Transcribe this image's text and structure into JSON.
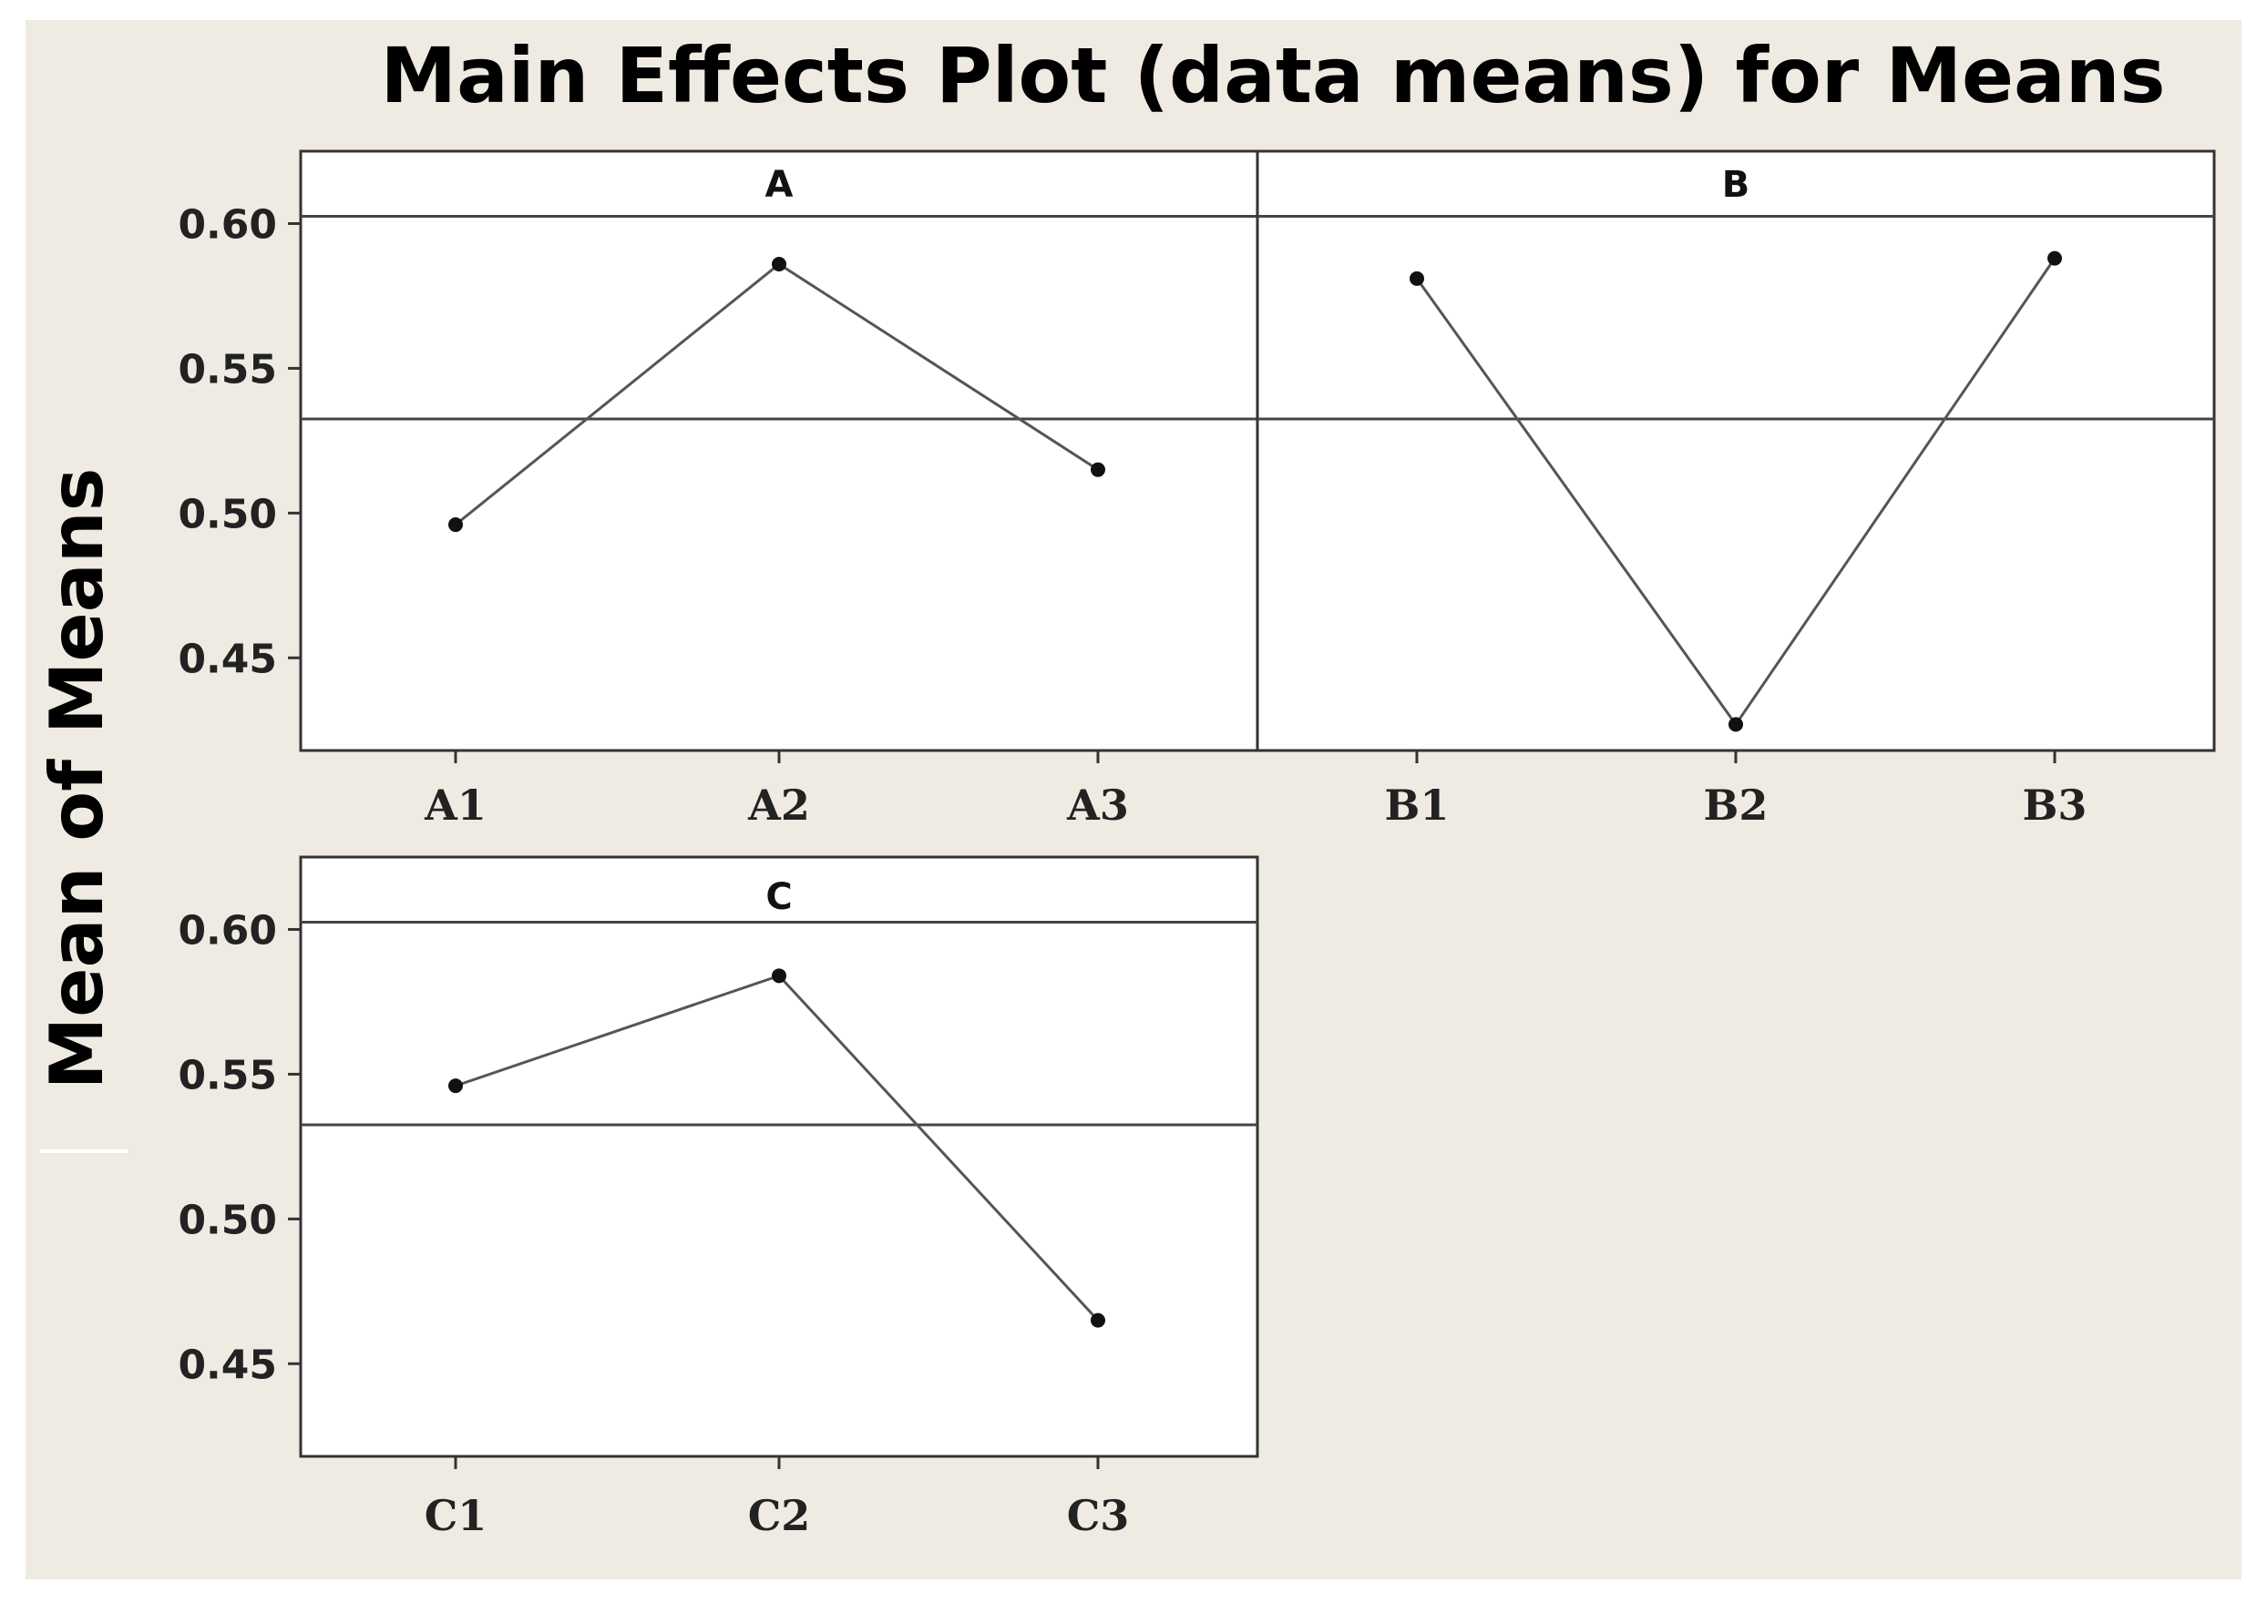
{
  "chart_data": {
    "type": "line",
    "title": "Main Effects Plot (data means) for Means",
    "ylabel": "Mean of Means",
    "ylim": [
      0.418,
      0.625
    ],
    "yticks": [
      "0.45",
      "0.50",
      "0.55",
      "0.60"
    ],
    "reference_lines": [
      0.5325,
      0.6025
    ],
    "grid": false,
    "colors": {
      "background": "#efebe2",
      "panel": "#ffffff",
      "line": "#555555",
      "marker": "#111111"
    },
    "panels": [
      {
        "name": "A",
        "categories": [
          "A1",
          "A2",
          "A3"
        ],
        "values": [
          0.496,
          0.586,
          0.515
        ]
      },
      {
        "name": "B",
        "categories": [
          "B1",
          "B2",
          "B3"
        ],
        "values": [
          0.581,
          0.427,
          0.588
        ]
      },
      {
        "name": "C",
        "categories": [
          "C1",
          "C2",
          "C3"
        ],
        "values": [
          0.546,
          0.584,
          0.465
        ]
      }
    ]
  }
}
